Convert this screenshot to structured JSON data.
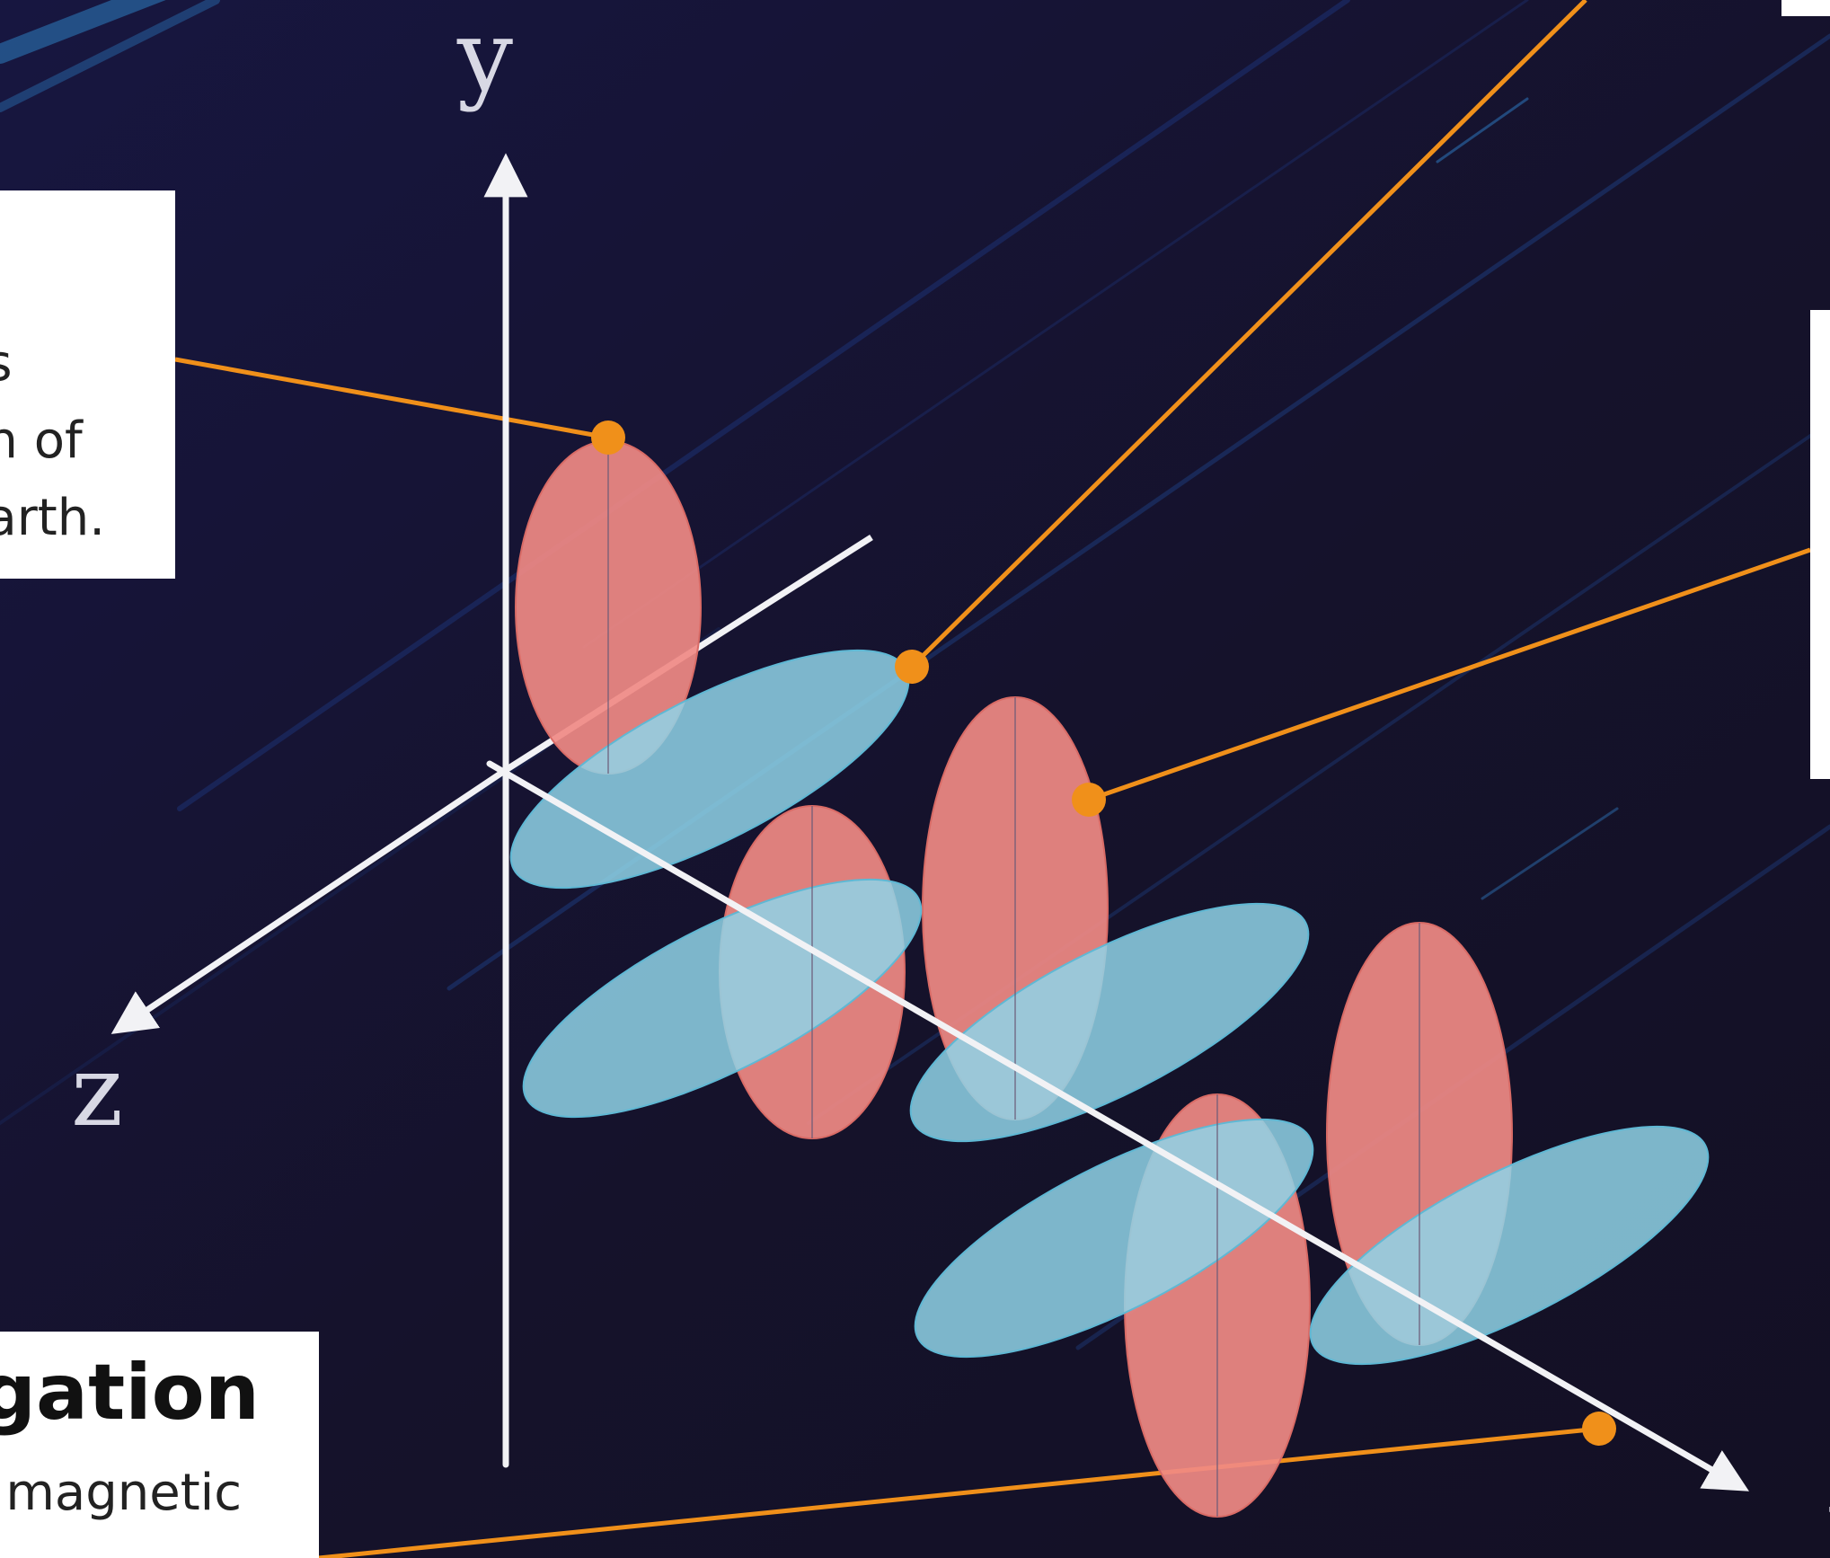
{
  "axes": {
    "y": "y",
    "z": "z",
    "x": "x"
  },
  "callouts": {
    "left": {
      "lines": [
        "s",
        "h of",
        "arth."
      ]
    },
    "bottom": {
      "heading": "gation",
      "text": "magnetic"
    },
    "right": {
      "text": ""
    }
  },
  "colors": {
    "background": "#15132e",
    "electric_field": "#f08a84",
    "magnetic_field": "#8fd3e8",
    "leader_line": "#f0901a",
    "axis": "#f2f2f5",
    "callout_box": "#ffffff"
  }
}
